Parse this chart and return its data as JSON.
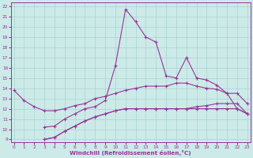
{
  "background_color": "#cceae8",
  "grid_color": "#aad4d0",
  "line_color": "#993399",
  "xlabel": "Windchill (Refroidissement éolien,°C)",
  "yticks": [
    9,
    10,
    11,
    12,
    13,
    14,
    15,
    16,
    17,
    18,
    19,
    20,
    21,
    22
  ],
  "xticks": [
    0,
    1,
    2,
    3,
    4,
    5,
    6,
    7,
    8,
    9,
    10,
    11,
    12,
    13,
    14,
    15,
    16,
    17,
    18,
    19,
    20,
    21,
    22,
    23
  ],
  "ylim": [
    8.7,
    22.4
  ],
  "xlim": [
    -0.3,
    23.3
  ],
  "line1_x": [
    0,
    1,
    2,
    3,
    4,
    5,
    6,
    7,
    8,
    9,
    10,
    11,
    12,
    13,
    14,
    15,
    16,
    17,
    18,
    19,
    20,
    21,
    22,
    23
  ],
  "line1_y": [
    13.8,
    12.8,
    12.2,
    11.8,
    11.8,
    12.0,
    12.3,
    12.5,
    13.0,
    13.2,
    13.5,
    13.8,
    14.0,
    14.2,
    14.2,
    14.2,
    14.5,
    14.5,
    14.2,
    14.0,
    13.9,
    13.5,
    13.5,
    12.5
  ],
  "line2_x": [
    0,
    1,
    2,
    3,
    4,
    5,
    6,
    7,
    8,
    9,
    10,
    11,
    12,
    13,
    14,
    15,
    16,
    17,
    18,
    19,
    20,
    21,
    22,
    23
  ],
  "line2_y": [
    null,
    null,
    null,
    9.0,
    9.2,
    9.8,
    10.3,
    10.8,
    11.2,
    11.5,
    11.8,
    12.0,
    12.0,
    12.0,
    12.0,
    12.0,
    12.0,
    12.0,
    12.2,
    12.3,
    12.5,
    12.5,
    12.5,
    11.5
  ],
  "line3_x": [
    0,
    1,
    2,
    3,
    4,
    5,
    6,
    7,
    8,
    9,
    10,
    11,
    12,
    13,
    14,
    15,
    16,
    17,
    18,
    19,
    20,
    21,
    22,
    23
  ],
  "line3_y": [
    null,
    null,
    null,
    10.2,
    10.3,
    11.0,
    11.5,
    12.0,
    12.2,
    12.8,
    16.2,
    21.7,
    20.5,
    19.0,
    18.5,
    15.2,
    15.0,
    17.0,
    15.0,
    14.8,
    14.3,
    13.5,
    12.0,
    11.5
  ],
  "line4_x": [
    0,
    1,
    2,
    3,
    4,
    5,
    6,
    7,
    8,
    9,
    10,
    11,
    12,
    13,
    14,
    15,
    16,
    17,
    18,
    19,
    20,
    21,
    22,
    23
  ],
  "line4_y": [
    null,
    null,
    null,
    9.0,
    9.2,
    9.8,
    10.3,
    10.8,
    11.2,
    11.5,
    11.8,
    12.0,
    12.0,
    12.0,
    12.0,
    12.0,
    12.0,
    12.0,
    12.0,
    12.0,
    12.0,
    12.0,
    12.0,
    11.5
  ]
}
